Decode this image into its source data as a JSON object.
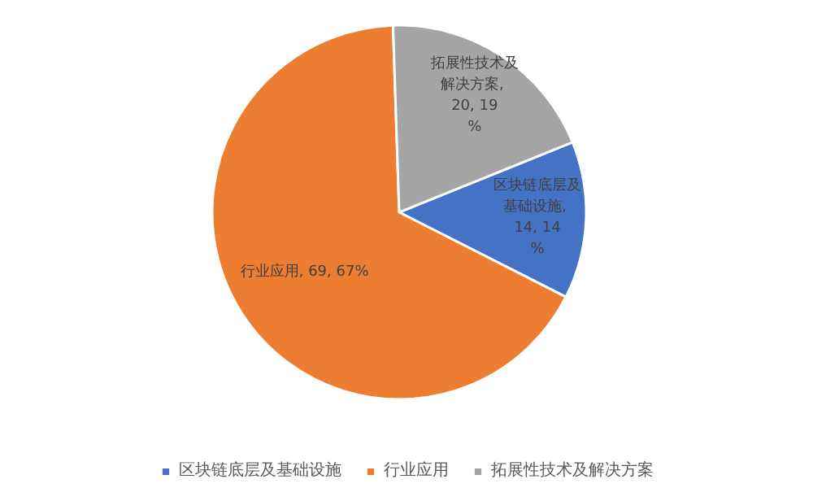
{
  "chart_data": {
    "type": "pie",
    "categories": [
      "区块链底层及基础设施",
      "行业应用",
      "拓展性技术及解决方案"
    ],
    "values": [
      14,
      69,
      20
    ],
    "colors": [
      "#4472c4",
      "#ed7d31",
      "#a5a5a5"
    ],
    "value_labels": [
      "区块链底层及基础设施, 14, 14%",
      "行业应用, 69, 67%",
      "拓展性技术及解决方案, 20, 19%"
    ],
    "legend": "bottom"
  }
}
